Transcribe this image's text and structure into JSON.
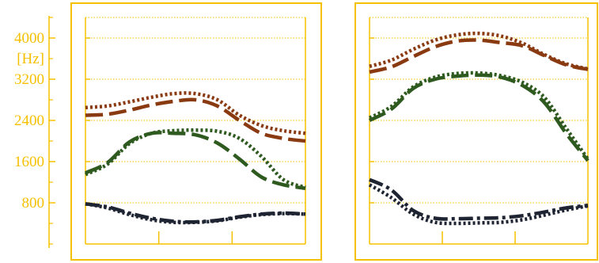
{
  "colors": {
    "frame": "#f5c000",
    "f1": "#1f2433",
    "f2": "#2f5a1f",
    "f3": "#8a3a10"
  },
  "chart_data": [
    {
      "type": "line",
      "ylabel": "[Hz]",
      "yticks": [
        800,
        1600,
        2400,
        3200,
        4000
      ],
      "ylim": [
        0,
        4400
      ],
      "xlim": [
        0,
        100
      ],
      "grid": true,
      "series": [
        {
          "formant": "F3",
          "style": "dotted",
          "x": [
            0,
            10,
            20,
            30,
            40,
            50,
            60,
            70,
            80,
            90,
            100
          ],
          "y": [
            2650,
            2680,
            2760,
            2850,
            2920,
            2920,
            2800,
            2500,
            2300,
            2200,
            2150
          ]
        },
        {
          "formant": "F3",
          "style": "dashed",
          "x": [
            0,
            10,
            20,
            30,
            40,
            50,
            60,
            70,
            80,
            90,
            100
          ],
          "y": [
            2500,
            2520,
            2600,
            2700,
            2770,
            2800,
            2680,
            2400,
            2150,
            2050,
            2000
          ]
        },
        {
          "formant": "F2",
          "style": "dotted",
          "x": [
            0,
            10,
            20,
            30,
            40,
            50,
            60,
            70,
            80,
            90,
            100
          ],
          "y": [
            1350,
            1550,
            1950,
            2150,
            2200,
            2210,
            2190,
            2050,
            1700,
            1250,
            1100
          ]
        },
        {
          "formant": "F2",
          "style": "dashed",
          "x": [
            0,
            10,
            20,
            30,
            40,
            50,
            60,
            70,
            80,
            90,
            100
          ],
          "y": [
            1380,
            1580,
            1980,
            2150,
            2150,
            2120,
            1960,
            1650,
            1300,
            1150,
            1080
          ]
        },
        {
          "formant": "F1",
          "style": "dotted",
          "x": [
            0,
            10,
            20,
            30,
            40,
            50,
            60,
            70,
            80,
            90,
            100
          ],
          "y": [
            780,
            700,
            570,
            470,
            420,
            420,
            450,
            520,
            570,
            590,
            580
          ]
        },
        {
          "formant": "F1",
          "style": "dashdot",
          "x": [
            0,
            10,
            20,
            30,
            40,
            50,
            60,
            70,
            80,
            90,
            100
          ],
          "y": [
            780,
            720,
            600,
            500,
            440,
            430,
            460,
            530,
            580,
            600,
            580
          ]
        }
      ]
    },
    {
      "type": "line",
      "ylim": [
        0,
        4400
      ],
      "xlim": [
        0,
        100
      ],
      "grid": true,
      "series": [
        {
          "formant": "F3",
          "style": "dotted",
          "x": [
            0,
            10,
            20,
            30,
            40,
            50,
            60,
            70,
            80,
            90,
            100
          ],
          "y": [
            3450,
            3570,
            3780,
            3960,
            4060,
            4090,
            4040,
            3900,
            3680,
            3500,
            3400
          ]
        },
        {
          "formant": "F3",
          "style": "dashed",
          "x": [
            0,
            10,
            20,
            30,
            40,
            50,
            60,
            70,
            80,
            90,
            100
          ],
          "y": [
            3340,
            3440,
            3640,
            3830,
            3940,
            3960,
            3910,
            3850,
            3660,
            3480,
            3390
          ]
        },
        {
          "formant": "F2",
          "style": "dotted",
          "x": [
            0,
            10,
            20,
            30,
            40,
            50,
            60,
            70,
            80,
            90,
            100
          ],
          "y": [
            2450,
            2670,
            3050,
            3240,
            3310,
            3320,
            3270,
            3140,
            2850,
            2250,
            1650
          ]
        },
        {
          "formant": "F2",
          "style": "dashed",
          "x": [
            0,
            10,
            20,
            30,
            40,
            50,
            60,
            70,
            80,
            90,
            100
          ],
          "y": [
            2400,
            2620,
            3020,
            3200,
            3260,
            3280,
            3240,
            3080,
            2750,
            2150,
            1620
          ]
        },
        {
          "formant": "F1",
          "style": "dotted",
          "x": [
            0,
            10,
            20,
            30,
            40,
            50,
            60,
            70,
            80,
            90,
            100
          ],
          "y": [
            1150,
            900,
            580,
            420,
            400,
            410,
            420,
            470,
            560,
            660,
            740
          ]
        },
        {
          "formant": "F1",
          "style": "dashdot",
          "x": [
            0,
            10,
            20,
            30,
            40,
            50,
            60,
            70,
            80,
            90,
            100
          ],
          "y": [
            1250,
            1050,
            650,
            500,
            490,
            500,
            510,
            550,
            620,
            700,
            750
          ]
        }
      ]
    }
  ]
}
